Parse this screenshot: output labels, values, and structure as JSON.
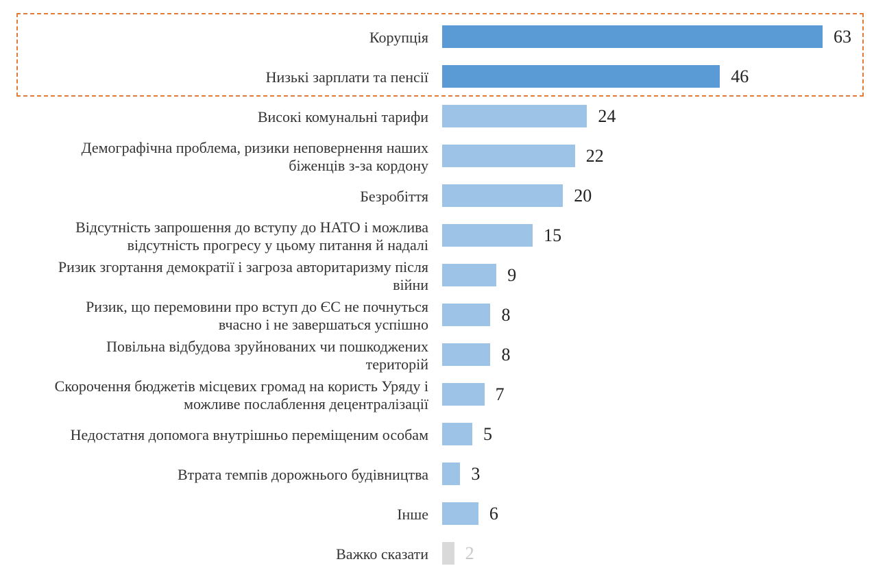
{
  "chart_data": {
    "type": "bar",
    "orientation": "horizontal",
    "categories": [
      [
        "Корупція"
      ],
      [
        "Низькі зарплати та пенсії"
      ],
      [
        "Високі комунальні тарифи"
      ],
      [
        "Демографічна проблема, ризики неповернення наших",
        "біженців з-за кордону"
      ],
      [
        "Безробіття"
      ],
      [
        "Відсутність запрошення до вступу до НАТО і можлива",
        "відсутність прогресу у цьому питання й надалі"
      ],
      [
        "Ризик  згортання демократії і загроза авторитаризму після",
        "війни"
      ],
      [
        "Ризик, що перемовини про вступ до ЄС не почнуться",
        "вчасно і не завершаться успішно"
      ],
      [
        "Повільна відбудова зруйнованих чи пошкоджених",
        "територій"
      ],
      [
        "Скорочення бюджетів місцевих громад на користь Уряду і",
        "можливе послаблення децентралізації"
      ],
      [
        "Недостатня допомога внутрішньо переміщеним особам"
      ],
      [
        "Втрата темпів дорожнього будівництва"
      ],
      [
        "Інше"
      ],
      [
        "Важко сказати"
      ]
    ],
    "values": [
      63,
      46,
      24,
      22,
      20,
      15,
      9,
      8,
      8,
      7,
      5,
      3,
      6,
      2
    ],
    "bar_colors": [
      "#5b9bd5",
      "#5b9bd5",
      "#9dc3e6",
      "#9dc3e6",
      "#9dc3e6",
      "#9dc3e6",
      "#9dc3e6",
      "#9dc3e6",
      "#9dc3e6",
      "#9dc3e6",
      "#9dc3e6",
      "#9dc3e6",
      "#9dc3e6",
      "#d9d9d9"
    ],
    "highlight_color": "#e07b39",
    "highlighted_categories": [
      0,
      1
    ],
    "title": "",
    "xlabel": "",
    "ylabel": "",
    "xlim": [
      0,
      63
    ],
    "grid": false,
    "legend": false
  }
}
